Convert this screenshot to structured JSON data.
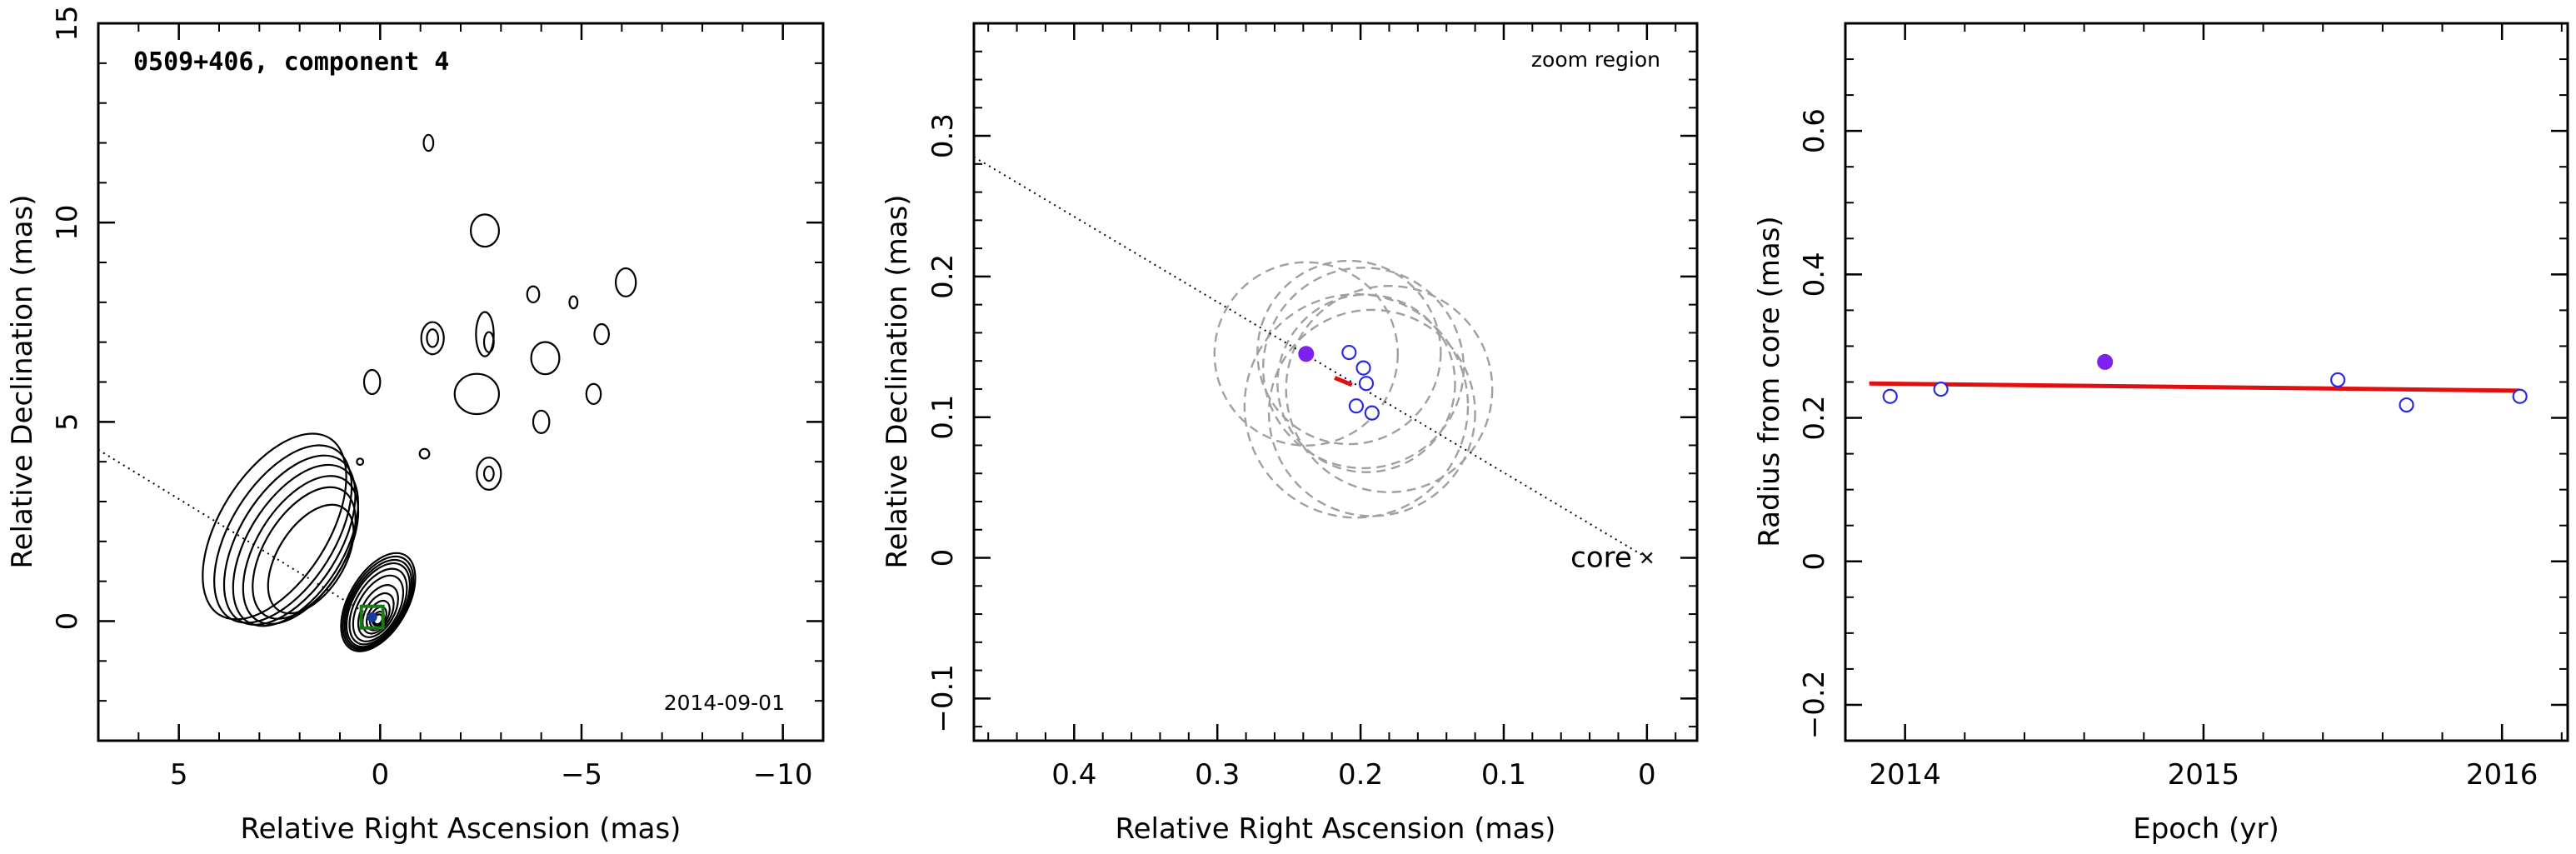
{
  "chart_data": [
    {
      "type": "contour",
      "title": "0509+406, component 4",
      "date": "2014-09-01",
      "xlabel": "Relative Right Ascension (mas)",
      "ylabel": "Relative Declination (mas)",
      "xlim": [
        7,
        -11
      ],
      "ylim": [
        -3,
        15
      ],
      "x_ticks": [
        5,
        0,
        -5,
        -10
      ],
      "y_ticks": [
        0,
        5,
        10,
        15
      ],
      "x_tick_labels": [
        "5",
        "0",
        "−5",
        "−10"
      ],
      "y_tick_labels": [
        "0",
        "5",
        "10",
        "15"
      ],
      "component_marker": {
        "x": 0.2,
        "y": 0.1,
        "color": "#1a7a1a"
      },
      "direction_line": {
        "from": [
          7.0,
          4.3
        ],
        "to": [
          0.2,
          0.1
        ],
        "style": "dotted"
      }
    },
    {
      "type": "scatter",
      "label": "zoom region",
      "core_label": "core",
      "xlabel": "Relative Right Ascension (mas)",
      "ylabel": "Relative Declination (mas)",
      "xlim": [
        0.47,
        -0.035
      ],
      "ylim": [
        -0.13,
        0.38
      ],
      "x_ticks": [
        0.4,
        0.3,
        0.2,
        0.1,
        0
      ],
      "y_ticks": [
        -0.1,
        0,
        0.1,
        0.2,
        0.3
      ],
      "x_tick_labels": [
        "0.4",
        "0.3",
        "0.2",
        "0.1",
        "0"
      ],
      "y_tick_labels": [
        "−0.1",
        "0",
        "0.1",
        "0.2",
        "0.3"
      ],
      "highlight_point": {
        "x": 0.238,
        "y": 0.145,
        "color": "#7d22ee"
      },
      "points": [
        {
          "x": 0.208,
          "y": 0.146
        },
        {
          "x": 0.198,
          "y": 0.135
        },
        {
          "x": 0.196,
          "y": 0.124
        },
        {
          "x": 0.203,
          "y": 0.108
        },
        {
          "x": 0.192,
          "y": 0.103
        }
      ],
      "error_circles": [
        {
          "x": 0.238,
          "y": 0.145,
          "r": 0.064
        },
        {
          "x": 0.208,
          "y": 0.146,
          "r": 0.064
        },
        {
          "x": 0.198,
          "y": 0.135,
          "r": 0.07
        },
        {
          "x": 0.196,
          "y": 0.124,
          "r": 0.062
        },
        {
          "x": 0.203,
          "y": 0.108,
          "r": 0.078
        },
        {
          "x": 0.192,
          "y": 0.103,
          "r": 0.072
        },
        {
          "x": 0.18,
          "y": 0.12,
          "r": 0.072
        }
      ],
      "fit_segment": {
        "from": [
          0.218,
          0.128
        ],
        "to": [
          0.206,
          0.123
        ],
        "color": "#e01010"
      },
      "direction_line": {
        "from": [
          0.47,
          0.285
        ],
        "to": [
          0.0,
          0.0
        ],
        "style": "dotted"
      },
      "core": {
        "x": 0.0,
        "y": 0.0
      }
    },
    {
      "type": "scatter",
      "xlabel": "Epoch (yr)",
      "ylabel": "Radius from core (mas)",
      "xlim": [
        2013.8,
        2016.22
      ],
      "ylim": [
        -0.25,
        0.75
      ],
      "x_ticks": [
        2014,
        2015,
        2016
      ],
      "y_ticks": [
        -0.2,
        0,
        0.2,
        0.4,
        0.6
      ],
      "x_tick_labels": [
        "2014",
        "2015",
        "2016"
      ],
      "y_tick_labels": [
        "−0.2",
        "0",
        "0.2",
        "0.4",
        "0.6"
      ],
      "points": [
        {
          "x": 2013.95,
          "y": 0.23
        },
        {
          "x": 2014.12,
          "y": 0.24
        },
        {
          "x": 2015.45,
          "y": 0.253
        },
        {
          "x": 2015.68,
          "y": 0.218
        },
        {
          "x": 2016.06,
          "y": 0.23
        }
      ],
      "highlight_point": {
        "x": 2014.67,
        "y": 0.278,
        "color": "#7d22ee"
      },
      "fit_line": {
        "x": [
          2013.88,
          2016.06
        ],
        "y": [
          0.248,
          0.238
        ],
        "color": "#e01010"
      }
    }
  ]
}
